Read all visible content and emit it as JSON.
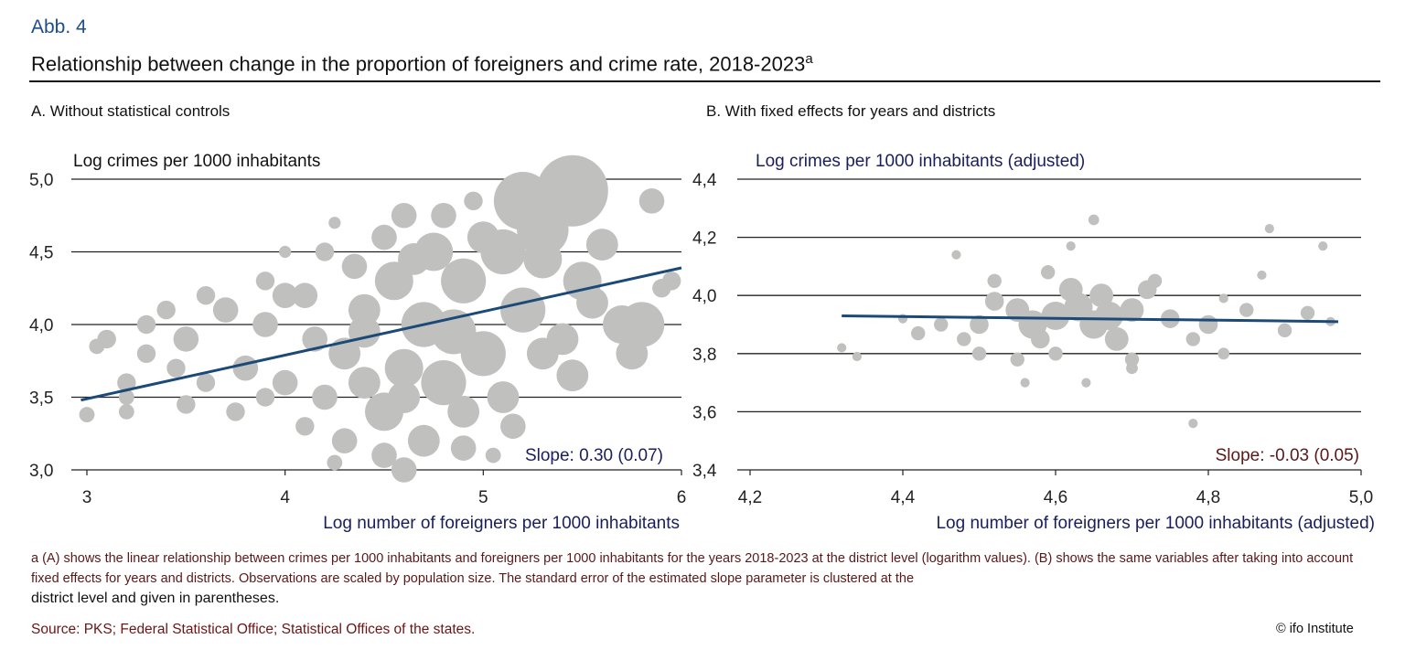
{
  "figure_label": "Abb. 4",
  "title": "Relationship between change in the proportion of foreigners and crime rate, 2018-2023",
  "title_superscript": "a",
  "colors": {
    "points": "#c0c0be",
    "fit_line": "#1b4a78",
    "label_navy": "#1a1f5c",
    "label_maroon": "#5a1818",
    "gridline": "#222222"
  },
  "chart_data": [
    {
      "type": "scatter",
      "panel_title": "A. Without statistical controls",
      "ylabel": "Log crimes per 1000 inhabitants",
      "xlabel": "Log number of foreigners per 1000 inhabitants",
      "xlim": [
        3,
        6
      ],
      "ylim": [
        3.0,
        5.0
      ],
      "xticks": [
        "3",
        "4",
        "5",
        "6"
      ],
      "xtick_values": [
        3,
        4,
        5,
        6
      ],
      "yticks": [
        "3,0",
        "3,5",
        "4,0",
        "4,5",
        "5,0"
      ],
      "ytick_values": [
        3.0,
        3.5,
        4.0,
        4.5,
        5.0
      ],
      "grid": "horizontal",
      "annotation": "Slope: 0.30 (0.07)",
      "fit_line": {
        "x": [
          2.97,
          6.0
        ],
        "y": [
          3.48,
          4.39
        ]
      },
      "points_note_size": "relative population",
      "points": [
        [
          5.45,
          4.92,
          10
        ],
        [
          5.2,
          4.85,
          8
        ],
        [
          5.3,
          4.65,
          7
        ],
        [
          5.85,
          4.85,
          3
        ],
        [
          5.7,
          4.0,
          5
        ],
        [
          5.5,
          4.3,
          5
        ],
        [
          5.1,
          4.5,
          6
        ],
        [
          4.9,
          4.3,
          6
        ],
        [
          4.7,
          4.0,
          6
        ],
        [
          4.6,
          3.7,
          5
        ],
        [
          4.8,
          3.6,
          6
        ],
        [
          4.5,
          3.4,
          5
        ],
        [
          4.9,
          3.4,
          4
        ],
        [
          5.0,
          3.8,
          6
        ],
        [
          5.2,
          4.1,
          6
        ],
        [
          5.3,
          3.8,
          4
        ],
        [
          4.4,
          4.1,
          4
        ],
        [
          4.3,
          3.8,
          4
        ],
        [
          4.2,
          3.5,
          3
        ],
        [
          4.1,
          4.2,
          3
        ],
        [
          3.9,
          4.0,
          3
        ],
        [
          3.7,
          4.1,
          3
        ],
        [
          3.5,
          3.9,
          3
        ],
        [
          3.3,
          3.8,
          2
        ],
        [
          3.2,
          3.6,
          2
        ],
        [
          3.0,
          3.38,
          1.5
        ],
        [
          3.1,
          3.9,
          2
        ],
        [
          3.6,
          3.6,
          2
        ],
        [
          3.8,
          3.7,
          3
        ],
        [
          4.0,
          3.6,
          3
        ],
        [
          3.4,
          4.1,
          2
        ],
        [
          3.6,
          4.2,
          2
        ],
        [
          3.9,
          4.3,
          2
        ],
        [
          4.2,
          4.5,
          2
        ],
        [
          4.5,
          4.6,
          3
        ],
        [
          4.6,
          4.75,
          3
        ],
        [
          4.8,
          4.75,
          3
        ],
        [
          4.95,
          4.85,
          2
        ],
        [
          4.7,
          3.2,
          4
        ],
        [
          4.5,
          3.1,
          3
        ],
        [
          4.3,
          3.2,
          3
        ],
        [
          4.6,
          3.0,
          3
        ],
        [
          4.9,
          3.15,
          3
        ],
        [
          5.1,
          3.5,
          4
        ],
        [
          5.4,
          3.9,
          4
        ],
        [
          5.55,
          4.15,
          4
        ],
        [
          5.9,
          4.25,
          2
        ],
        [
          5.95,
          4.3,
          2
        ],
        [
          5.8,
          4.0,
          6
        ],
        [
          5.75,
          3.8,
          4
        ],
        [
          4.0,
          4.2,
          3
        ],
        [
          4.1,
          3.3,
          2
        ],
        [
          3.75,
          3.4,
          2
        ],
        [
          3.5,
          3.45,
          2
        ],
        [
          3.05,
          3.85,
          1.5
        ],
        [
          3.2,
          3.5,
          1.5
        ],
        [
          4.25,
          3.05,
          1.5
        ],
        [
          5.05,
          3.1,
          1.5
        ],
        [
          4.0,
          4.5,
          1
        ],
        [
          4.25,
          4.7,
          1
        ],
        [
          5.3,
          4.45,
          5
        ],
        [
          4.75,
          4.5,
          5
        ],
        [
          4.55,
          4.3,
          5
        ],
        [
          4.35,
          4.4,
          3
        ],
        [
          4.85,
          3.95,
          6
        ],
        [
          5.15,
          3.3,
          3
        ],
        [
          4.4,
          3.6,
          4
        ],
        [
          3.3,
          4.0,
          2
        ],
        [
          5.6,
          4.55,
          4
        ],
        [
          5.45,
          3.65,
          4
        ],
        [
          3.2,
          3.4,
          1.5
        ],
        [
          3.45,
          3.7,
          2
        ],
        [
          3.9,
          3.5,
          2
        ],
        [
          4.15,
          3.9,
          3
        ],
        [
          4.65,
          4.45,
          4
        ],
        [
          5.0,
          4.6,
          4
        ],
        [
          4.4,
          3.95,
          4
        ],
        [
          4.6,
          3.5,
          4
        ]
      ]
    },
    {
      "type": "scatter",
      "panel_title": "B. With fixed effects for years and districts",
      "ylabel": "Log crimes per 1000 inhabitants (adjusted)",
      "xlabel": "Log number of foreigners per 1000 inhabitants (adjusted)",
      "xlim": [
        4.2,
        5.0
      ],
      "ylim": [
        3.4,
        4.4
      ],
      "xticks": [
        "4,2",
        "4,4",
        "4,6",
        "4,8",
        "5,0"
      ],
      "xtick_values": [
        4.2,
        4.4,
        4.6,
        4.8,
        5.0
      ],
      "yticks": [
        "3,4",
        "3,6",
        "3,8",
        "4,0",
        "4,2",
        "4,4"
      ],
      "ytick_values": [
        3.4,
        3.6,
        3.8,
        4.0,
        4.2,
        4.4
      ],
      "grid": "horizontal",
      "annotation": "Slope: -0.03 (0.05)",
      "fit_line": {
        "x": [
          4.32,
          4.97
        ],
        "y": [
          3.93,
          3.91
        ]
      },
      "points": [
        [
          4.6,
          3.93,
          5
        ],
        [
          4.55,
          3.95,
          4
        ],
        [
          4.65,
          3.9,
          5
        ],
        [
          4.7,
          3.95,
          4
        ],
        [
          4.5,
          3.9,
          3
        ],
        [
          4.62,
          4.02,
          4
        ],
        [
          4.68,
          3.85,
          4
        ],
        [
          4.58,
          3.85,
          3
        ],
        [
          4.75,
          3.92,
          3
        ],
        [
          4.52,
          3.98,
          3
        ],
        [
          4.66,
          4.0,
          4
        ],
        [
          4.72,
          4.02,
          3
        ],
        [
          4.8,
          3.9,
          3
        ],
        [
          4.85,
          3.95,
          2
        ],
        [
          4.48,
          3.85,
          2
        ],
        [
          4.45,
          3.9,
          2
        ],
        [
          4.78,
          3.85,
          2
        ],
        [
          4.6,
          3.8,
          2
        ],
        [
          4.55,
          3.78,
          2
        ],
        [
          4.7,
          3.78,
          2
        ],
        [
          4.32,
          3.82,
          1
        ],
        [
          4.34,
          3.79,
          1
        ],
        [
          4.42,
          3.87,
          2
        ],
        [
          4.47,
          4.14,
          1
        ],
        [
          4.65,
          4.26,
          1.3
        ],
        [
          4.62,
          4.17,
          1
        ],
        [
          4.88,
          4.23,
          1
        ],
        [
          4.95,
          4.17,
          1
        ],
        [
          4.9,
          3.88,
          2
        ],
        [
          4.93,
          3.94,
          2
        ],
        [
          4.96,
          3.91,
          1
        ],
        [
          4.82,
          3.99,
          1
        ],
        [
          4.87,
          4.07,
          1
        ],
        [
          4.78,
          3.56,
          1
        ],
        [
          4.64,
          3.7,
          1
        ],
        [
          4.56,
          3.7,
          1
        ],
        [
          4.4,
          3.92,
          1
        ],
        [
          4.52,
          4.05,
          2
        ],
        [
          4.73,
          4.05,
          2
        ],
        [
          4.82,
          3.8,
          1.5
        ],
        [
          4.7,
          3.75,
          1.5
        ],
        [
          4.59,
          4.08,
          2
        ],
        [
          4.5,
          3.8,
          2
        ],
        [
          4.63,
          3.96,
          5
        ],
        [
          4.57,
          3.9,
          5
        ],
        [
          4.67,
          3.93,
          5
        ]
      ]
    }
  ],
  "footnote": "a (A) shows the linear relationship between crimes per 1000 inhabitants and foreigners per 1000 inhabitants for the years 2018-2023 at the district level (logarithm values). (B) shows the same variables after taking into account fixed effects for years and districts. Observations are scaled by population size. The standard error of the estimated slope parameter is clustered at the",
  "footnote_tail": "district level and given in parentheses.",
  "source": "Source: PKS; Federal Statistical Office; Statistical Offices of the states.",
  "copyright": "©   ifo Institute"
}
